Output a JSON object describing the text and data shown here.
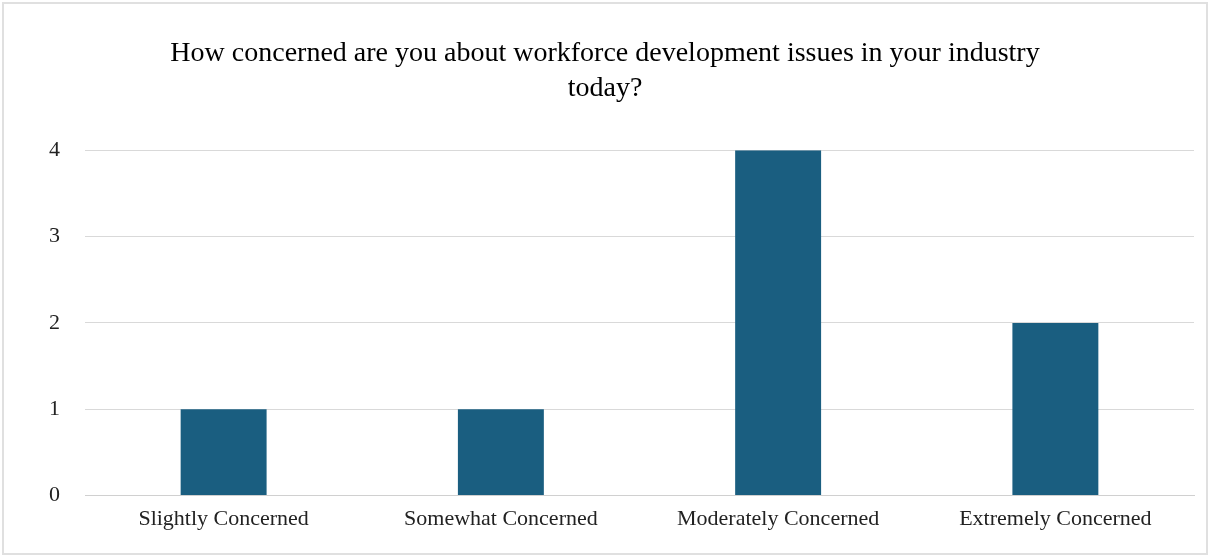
{
  "chart_data": {
    "type": "bar",
    "title": "How concerned are you about workforce development issues in your industry today?",
    "categories": [
      "Slightly Concerned",
      "Somewhat Concerned",
      "Moderately Concerned",
      "Extremely Concerned"
    ],
    "values": [
      1,
      1,
      4,
      2
    ],
    "color": "#1a5e80",
    "ylim": [
      0,
      4
    ],
    "yticks": [
      0,
      1,
      2,
      3,
      4
    ],
    "grid": "y"
  }
}
